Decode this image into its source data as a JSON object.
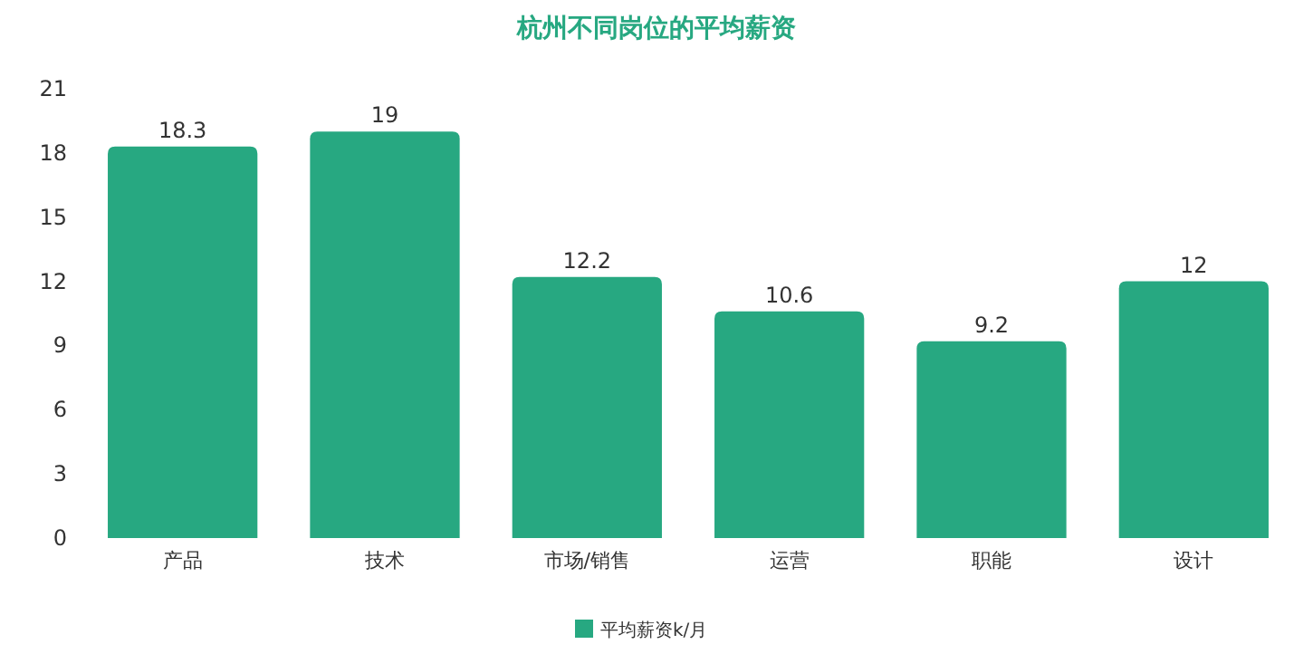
{
  "chart_data": {
    "type": "bar",
    "title": "杭州不同岗位的平均薪资",
    "categories": [
      "产品",
      "技术",
      "市场/销售",
      "运营",
      "职能",
      "设计"
    ],
    "series": [
      {
        "name": "平均薪资k/月",
        "color": "#27a881",
        "values": [
          18.3,
          19,
          12.2,
          10.6,
          9.2,
          12
        ]
      }
    ],
    "ylim": [
      0,
      21
    ],
    "yticks": [
      0,
      3,
      6,
      9,
      12,
      15,
      18,
      21
    ],
    "grid": false,
    "data_labels": true,
    "legend": "bottom"
  }
}
